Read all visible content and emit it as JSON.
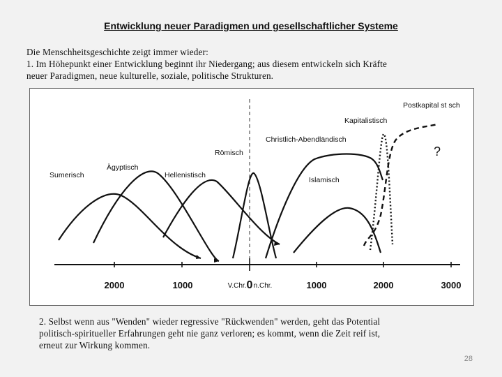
{
  "title": "Entwicklung neuer Paradigmen und gesellschaftlicher Systeme",
  "intro": [
    "Die Menschheitsgeschichte zeigt immer wieder:",
    "1. Im Höhepunkt einer Entwicklung beginnt ihr Niedergang; aus diesem entwickeln sich Kräfte",
    "neuer Paradigmen, neue kulturelle, soziale, politische Strukturen."
  ],
  "diagram": {
    "x_ticks": [
      "2000",
      "1000",
      "V.Chr.",
      "0",
      "n.Chr.",
      "1000",
      "2000",
      "3000"
    ],
    "curve_labels": {
      "sumerisch": "Sumerisch",
      "aegyptisch": "Ägyptisch",
      "hellenistisch": "Hellenistisch",
      "roemisch": "Römisch",
      "christlich": "Christlich-Abendländisch",
      "islamisch": "Islamisch",
      "kapitalistisch": "Kapitalistisch",
      "postkapitalistisch": "Postkapital st sch",
      "question": "?"
    }
  },
  "outro": [
    "2. Selbst wenn aus \"Wenden\" wieder regressive \"Rückwenden\" werden, geht das Potential",
    "politisch-spiritueller Erfahrungen geht nie ganz verloren; es kommt, wenn die Zeit reif ist,",
    "erneut zur Wirkung kommen."
  ],
  "page_number": "28"
}
